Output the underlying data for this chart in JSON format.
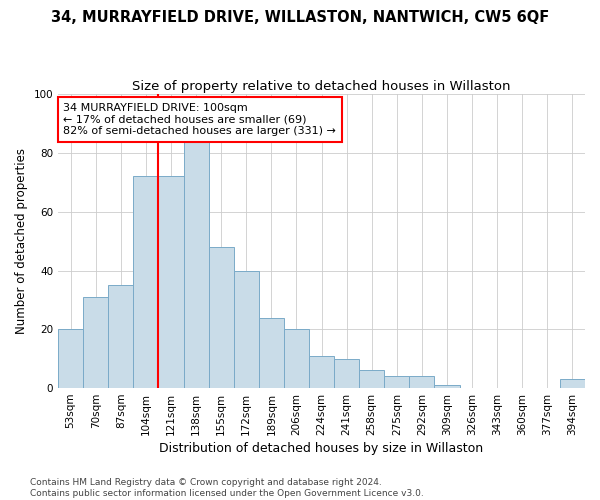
{
  "title1": "34, MURRAYFIELD DRIVE, WILLASTON, NANTWICH, CW5 6QF",
  "title2": "Size of property relative to detached houses in Willaston",
  "xlabel": "Distribution of detached houses by size in Willaston",
  "ylabel": "Number of detached properties",
  "categories": [
    "53sqm",
    "70sqm",
    "87sqm",
    "104sqm",
    "121sqm",
    "138sqm",
    "155sqm",
    "172sqm",
    "189sqm",
    "206sqm",
    "224sqm",
    "241sqm",
    "258sqm",
    "275sqm",
    "292sqm",
    "309sqm",
    "326sqm",
    "343sqm",
    "360sqm",
    "377sqm",
    "394sqm"
  ],
  "values": [
    20,
    31,
    35,
    72,
    72,
    84,
    48,
    40,
    24,
    20,
    11,
    10,
    6,
    4,
    4,
    1,
    0,
    0,
    0,
    0,
    3
  ],
  "bar_color": "#c9dce8",
  "bar_edge_color": "#7aaac8",
  "property_line_x": 3.5,
  "annotation_text": "34 MURRAYFIELD DRIVE: 100sqm\n← 17% of detached houses are smaller (69)\n82% of semi-detached houses are larger (331) →",
  "annotation_box_color": "white",
  "annotation_box_edge_color": "red",
  "red_line_color": "red",
  "ylim": [
    0,
    100
  ],
  "grid_color": "#cccccc",
  "background_color": "white",
  "plot_bg_color": "white",
  "footnote": "Contains HM Land Registry data © Crown copyright and database right 2024.\nContains public sector information licensed under the Open Government Licence v3.0.",
  "title1_fontsize": 10.5,
  "title2_fontsize": 9.5,
  "ylabel_fontsize": 8.5,
  "xlabel_fontsize": 9,
  "tick_fontsize": 7.5,
  "annotation_fontsize": 8,
  "footnote_fontsize": 6.5
}
